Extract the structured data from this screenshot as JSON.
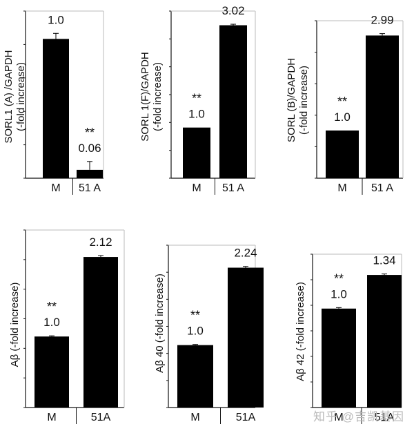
{
  "figure": {
    "watermark": "知乎 @吉凯基因"
  },
  "chart_data": [
    {
      "type": "bar",
      "ylabel": [
        "SORL1 (A) /GAPDH",
        "(-fold increase)"
      ],
      "categories": [
        "M",
        "51 A"
      ],
      "values": [
        1.0,
        0.06
      ],
      "errors": [
        0.04,
        0.06
      ],
      "labels": [
        "1.0",
        "0.06"
      ],
      "significance": [
        "",
        "**"
      ],
      "ylim": [
        0,
        1.2
      ]
    },
    {
      "type": "bar",
      "ylabel": [
        "SORL 1(F)/GAPDH",
        "(-fold increase)"
      ],
      "categories": [
        "M",
        "51 A"
      ],
      "values": [
        1.0,
        3.02
      ],
      "errors": [
        0.0,
        0.02
      ],
      "labels": [
        "1.0",
        "3.02"
      ],
      "significance": [
        "**",
        ""
      ],
      "ylim": [
        0,
        3.3
      ]
    },
    {
      "type": "bar",
      "ylabel": [
        "SORL (B)/GAPDH",
        "(-fold increase)"
      ],
      "categories": [
        "M",
        "51 A"
      ],
      "values": [
        1.0,
        2.99
      ],
      "errors": [
        0.0,
        0.04
      ],
      "labels": [
        "1.0",
        "2.99"
      ],
      "significance": [
        "**",
        ""
      ],
      "ylim": [
        0,
        3.3
      ]
    },
    {
      "type": "bar",
      "ylabel": [
        "Aβ (-fold increase)"
      ],
      "categories": [
        "M",
        "51A"
      ],
      "values": [
        1.0,
        2.12
      ],
      "errors": [
        0.01,
        0.02
      ],
      "labels": [
        "1.0",
        "2.12"
      ],
      "significance": [
        "**",
        ""
      ],
      "ylim": [
        0,
        2.5
      ]
    },
    {
      "type": "bar",
      "ylabel": [
        "Aβ 40 (-fold increase)"
      ],
      "categories": [
        "M",
        "51A"
      ],
      "values": [
        1.0,
        2.24
      ],
      "errors": [
        0.01,
        0.02
      ],
      "labels": [
        "1.0",
        "2.24"
      ],
      "significance": [
        "**",
        ""
      ],
      "ylim": [
        0,
        2.6
      ]
    },
    {
      "type": "bar",
      "ylabel": [
        "Aβ 42 (-fold increase)"
      ],
      "categories": [
        "M",
        "51A"
      ],
      "values": [
        1.0,
        1.34
      ],
      "errors": [
        0.01,
        0.01
      ],
      "labels": [
        "1.0",
        "1.34"
      ],
      "significance": [
        "**",
        ""
      ],
      "ylim": [
        0,
        1.55
      ]
    }
  ]
}
